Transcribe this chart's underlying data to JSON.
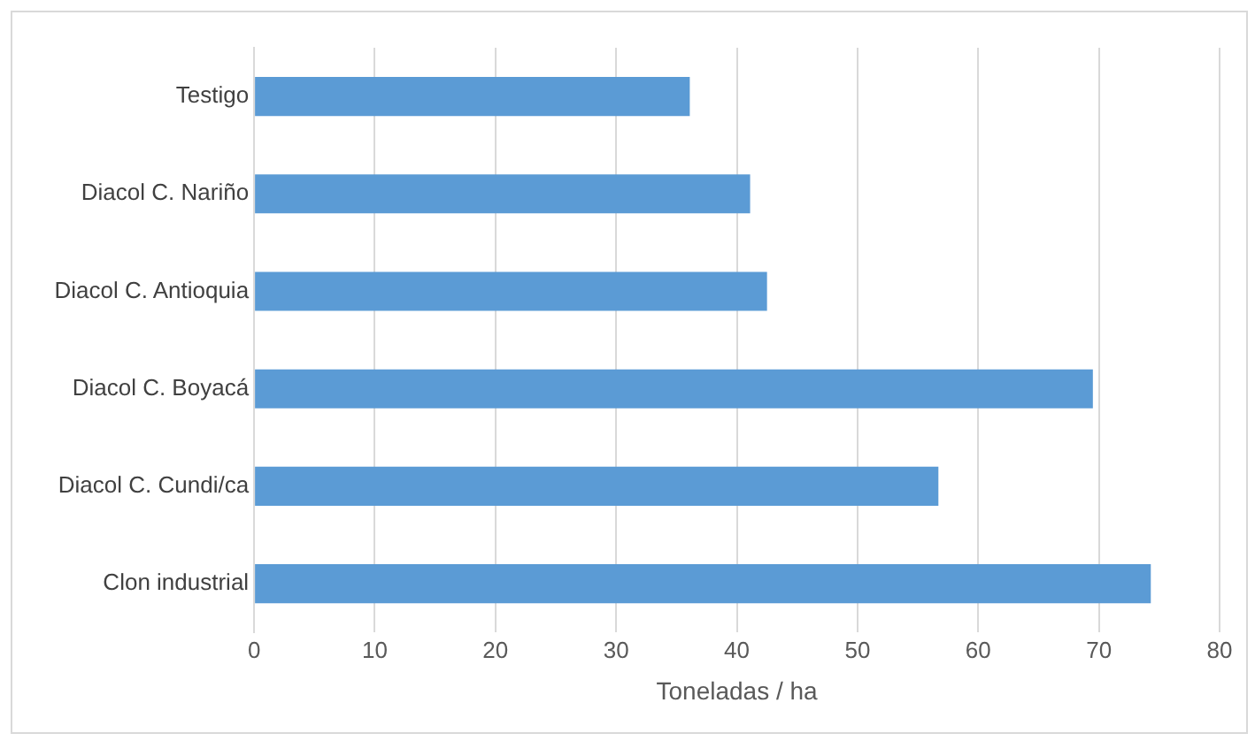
{
  "chart_data": {
    "type": "bar",
    "orientation": "horizontal",
    "xlabel": "Toneladas / ha",
    "categories": [
      "Testigo",
      "Diacol C. Nariño",
      "Diacol C. Antioquia",
      "Diacol C. Boyacá",
      "Diacol C. Cundi/ca",
      "Clon industrial"
    ],
    "values": [
      36.1,
      41.1,
      42.5,
      69.5,
      56.7,
      74.3
    ],
    "color": "#5b9bd5",
    "xlim": [
      0,
      80
    ],
    "xticks": [
      0,
      10,
      20,
      30,
      40,
      50,
      60,
      70,
      80
    ],
    "grid": "x",
    "legend": false
  }
}
